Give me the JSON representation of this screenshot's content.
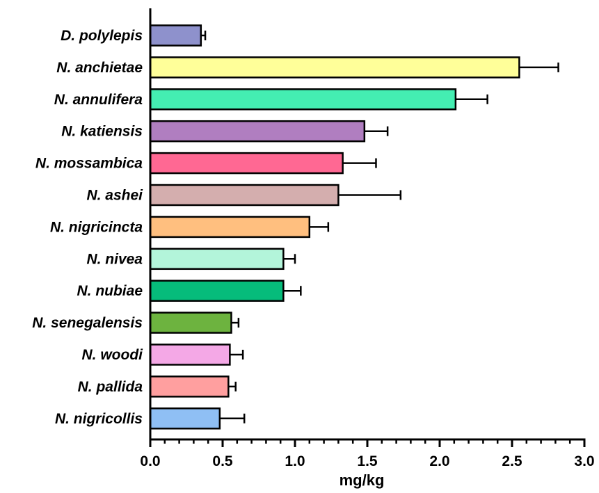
{
  "chart_data": {
    "type": "bar",
    "orientation": "horizontal",
    "categories": [
      "D. polylepis",
      "N. anchietae",
      "N. annulifera",
      "N. katiensis",
      "N. mossambica",
      "N. ashei",
      "N. nigricincta",
      "N. nivea",
      "N. nubiae",
      "N. senegalensis",
      "N. woodi",
      "N. pallida",
      "N. nigricollis"
    ],
    "values": [
      0.35,
      2.55,
      2.11,
      1.48,
      1.33,
      1.3,
      1.1,
      0.92,
      0.92,
      0.56,
      0.55,
      0.54,
      0.48
    ],
    "errors": [
      0.03,
      0.27,
      0.22,
      0.16,
      0.23,
      0.43,
      0.13,
      0.08,
      0.12,
      0.05,
      0.09,
      0.05,
      0.17
    ],
    "colors": [
      "#8e91cc",
      "#ffff99",
      "#44eeb2",
      "#b07ec0",
      "#ff6893",
      "#d4aeae",
      "#ffbf7f",
      "#b3f5da",
      "#06bc7b",
      "#6db33f",
      "#f4a8e6",
      "#ff9f9f",
      "#8fbff4"
    ],
    "title": "",
    "xlabel": "mg/kg",
    "ylabel": "",
    "xlim": [
      0.0,
      3.0
    ],
    "xticks": [
      "0.0",
      "0.5",
      "1.0",
      "1.5",
      "2.0",
      "2.5",
      "3.0"
    ],
    "grid": false,
    "legend": "none"
  }
}
